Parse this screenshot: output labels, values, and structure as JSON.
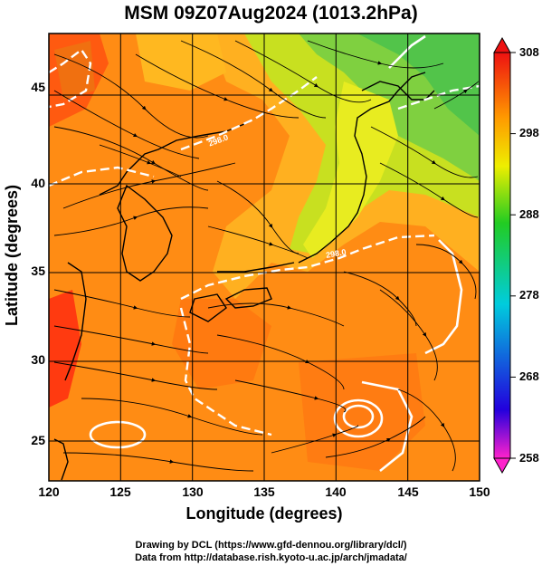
{
  "title": "MSM 09Z07Aug2024 (1013.2hPa)",
  "axes": {
    "xlabel": "Longitude (degrees)",
    "ylabel": "Latitude  (degrees)",
    "xticks": [
      "120",
      "125",
      "130",
      "135",
      "140",
      "145",
      "150"
    ],
    "yticks": [
      "45",
      "40",
      "35",
      "30",
      "25"
    ],
    "xlim": [
      120,
      150
    ],
    "ylim": [
      22.4,
      47.6
    ]
  },
  "colorbar": {
    "ticks": [
      "308",
      "298",
      "288",
      "278",
      "268",
      "258"
    ],
    "range": [
      258,
      308
    ],
    "colors": [
      "#ff00cc",
      "#0000ff",
      "#00cccc",
      "#22cc22",
      "#ffff00",
      "#ff8800",
      "#dd0000"
    ]
  },
  "map": {
    "contour_labels": [
      "298.0",
      "298.0"
    ]
  },
  "footer": {
    "line1": "Drawing by DCL (https://www.gfd-dennou.org/library/dcl/)",
    "line2": "Data from http://database.rish.kyoto-u.ac.jp/arch/jmadata/"
  }
}
